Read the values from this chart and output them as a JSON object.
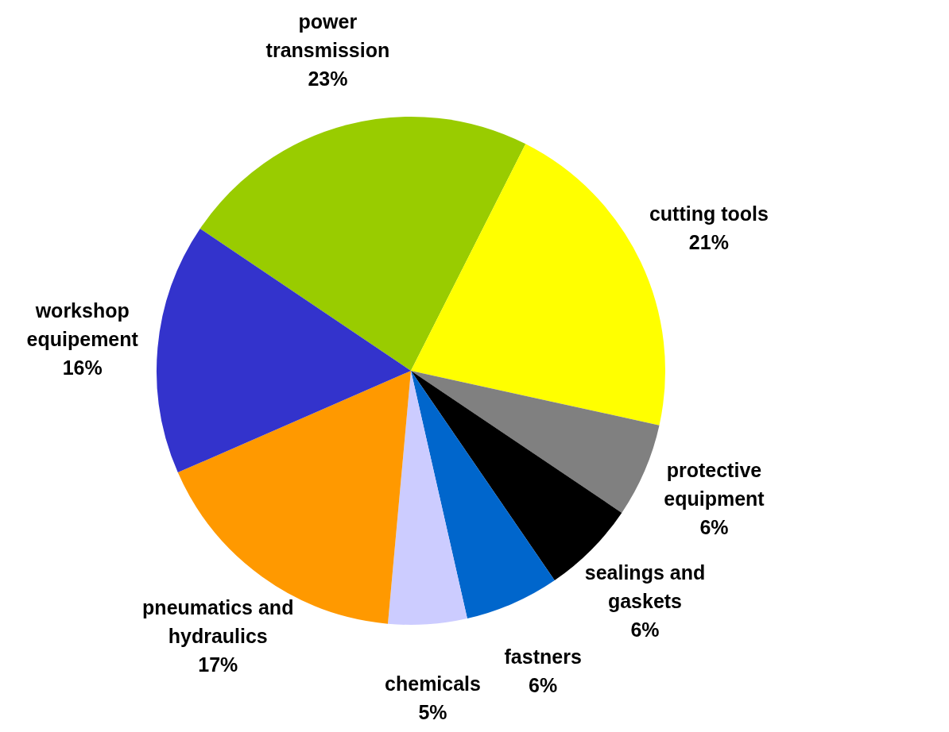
{
  "chart_data": {
    "type": "pie",
    "categories": [
      "power transmission",
      "cutting tools",
      "protective equipment",
      "sealings and gaskets",
      "fastners",
      "chemicals",
      "pneumatics and hydraulics",
      "workshop equipement"
    ],
    "values": [
      23,
      21,
      6,
      6,
      6,
      5,
      17,
      16
    ],
    "value_labels": [
      "23%",
      "21%",
      "6%",
      "6%",
      "6%",
      "5%",
      "17%",
      "16%"
    ],
    "colors": [
      "#99cc00",
      "#ffff00",
      "#808080",
      "#000000",
      "#0066cc",
      "#ccccff",
      "#ff9900",
      "#3333cc"
    ],
    "legend": false
  }
}
